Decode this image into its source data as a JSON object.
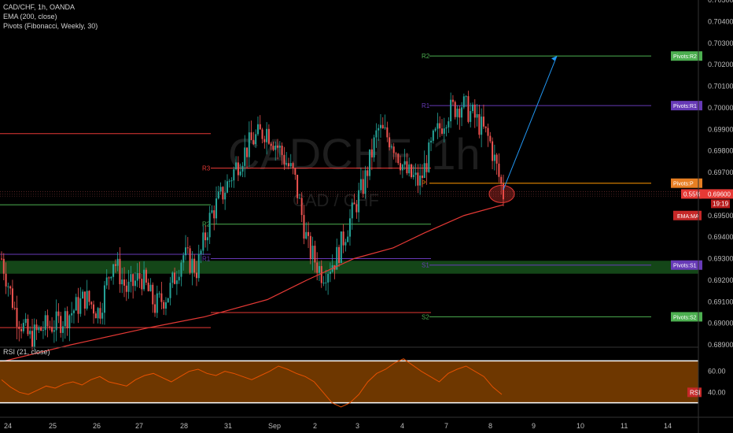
{
  "header": {
    "symbol_line": "CAD/CHF, 1h, OANDA",
    "indicator_1": "EMA (200, close)",
    "indicator_2": "Pivots (Fibonacci, Weekly, 30)",
    "rsi_label": "RSI (21, close)"
  },
  "watermark": {
    "big": "CADCHF, 1h",
    "small": "CAD / CHF"
  },
  "colors": {
    "background": "#000000",
    "up_candle": "#26a69a",
    "down_candle": "#ef5350",
    "ema": "#e53935",
    "pivot_green": "#4caf50",
    "pivot_purple": "#673ab7",
    "pivot_red": "#e53935",
    "pivot_orange": "#ff9800",
    "support_zone": "#1b5e20",
    "rsi_band": "#7a3d00",
    "arrow": "#2196f3"
  },
  "chart_data": [
    {
      "type": "candlestick",
      "title": "CAD/CHF, 1h, OANDA",
      "ylim": [
        0.689,
        0.705
      ],
      "y_ticks": [
        "0.70500",
        "0.70400",
        "0.70300",
        "0.70200",
        "0.70100",
        "0.70000",
        "0.69900",
        "0.69800",
        "0.69700",
        "0.69600",
        "0.69500",
        "0.69400",
        "0.69300",
        "0.69200",
        "0.69100",
        "0.69000",
        "0.68900"
      ],
      "x_ticks": [
        "24",
        "25",
        "26",
        "27",
        "28",
        "31",
        "Sep",
        "2",
        "3",
        "4",
        "7",
        "8",
        "9",
        "10",
        "11",
        "14"
      ],
      "price_path": [
        {
          "t": "24",
          "v": 0.693
        },
        {
          "t": "24.3",
          "v": 0.6905
        },
        {
          "t": "24.6",
          "v": 0.6893
        },
        {
          "t": "25",
          "v": 0.6898
        },
        {
          "t": "25.5",
          "v": 0.69
        },
        {
          "t": "26",
          "v": 0.6905
        },
        {
          "t": "26.5",
          "v": 0.6912
        },
        {
          "t": "27",
          "v": 0.6905
        },
        {
          "t": "27.5",
          "v": 0.693
        },
        {
          "t": "27.8",
          "v": 0.6915
        },
        {
          "t": "28",
          "v": 0.6922
        },
        {
          "t": "28.5",
          "v": 0.6908
        },
        {
          "t": "31",
          "v": 0.6914
        },
        {
          "t": "31.5",
          "v": 0.6932
        },
        {
          "t": "Sep",
          "v": 0.6925
        },
        {
          "t": "1.3",
          "v": 0.695
        },
        {
          "t": "1.7",
          "v": 0.6962
        },
        {
          "t": "2",
          "v": 0.6975
        },
        {
          "t": "2.3",
          "v": 0.6985
        },
        {
          "t": "2.6",
          "v": 0.699
        },
        {
          "t": "2.9",
          "v": 0.698
        },
        {
          "t": "3",
          "v": 0.6968
        },
        {
          "t": "3.2",
          "v": 0.6935
        },
        {
          "t": "3.5",
          "v": 0.6923
        },
        {
          "t": "3.8",
          "v": 0.693
        },
        {
          "t": "4",
          "v": 0.6948
        },
        {
          "t": "4.2",
          "v": 0.6965
        },
        {
          "t": "4.5",
          "v": 0.699
        },
        {
          "t": "4.8",
          "v": 0.6985
        },
        {
          "t": "5",
          "v": 0.697
        },
        {
          "t": "7",
          "v": 0.6965
        },
        {
          "t": "7.2",
          "v": 0.6985
        },
        {
          "t": "7.5",
          "v": 0.6998
        },
        {
          "t": "7.8",
          "v": 0.7002
        },
        {
          "t": "8",
          "v": 0.6995
        },
        {
          "t": "8.1",
          "v": 0.6985
        },
        {
          "t": "8.3",
          "v": 0.696
        }
      ],
      "ema_200": [
        {
          "t": "25",
          "v": 0.6882
        },
        {
          "t": "27",
          "v": 0.689
        },
        {
          "t": "29",
          "v": 0.6898
        },
        {
          "t": "31",
          "v": 0.6903
        },
        {
          "t": "1",
          "v": 0.6911
        },
        {
          "t": "2",
          "v": 0.692
        },
        {
          "t": "3",
          "v": 0.693
        },
        {
          "t": "4",
          "v": 0.6935
        },
        {
          "t": "5",
          "v": 0.6942
        },
        {
          "t": "7",
          "v": 0.695
        },
        {
          "t": "8",
          "v": 0.6955
        }
      ],
      "current_price": {
        "value": "0.69600",
        "change": "0.55%",
        "countdown": "19:19"
      },
      "ema_tag": "EMA:MA",
      "pivot_tags": [
        "Pivots:R2",
        "Pivots:R1",
        "Pivots:P",
        "Pivots:S1",
        "Pivots:S2"
      ],
      "weekly_pivot_labels": [
        "R3",
        "R2",
        "R1",
        "R2",
        "R1",
        "P",
        "S1",
        "S2"
      ],
      "pivots_current_week": {
        "R2": 0.7024,
        "R1": 0.7001,
        "P": 0.6965,
        "S1": 0.6927,
        "S2": 0.6903
      },
      "pivots_prior_week": {
        "R3": 0.6972,
        "R2": 0.6946,
        "R1": 0.693,
        "S2": 0.6905
      },
      "support_zone": [
        0.6923,
        0.6929
      ],
      "annotation": "projection arrow from circled EMA retest toward R2"
    },
    {
      "type": "line",
      "title": "RSI (21, close)",
      "ylim": [
        20,
        80
      ],
      "y_ticks": [
        "60.00",
        "40.00"
      ],
      "tag": "RSI",
      "values": [
        52,
        45,
        40,
        38,
        42,
        46,
        44,
        48,
        50,
        47,
        52,
        55,
        50,
        48,
        46,
        52,
        56,
        58,
        54,
        50,
        55,
        60,
        62,
        58,
        56,
        60,
        58,
        55,
        52,
        56,
        60,
        65,
        62,
        58,
        55,
        50,
        40,
        30,
        26,
        30,
        38,
        50,
        58,
        62,
        68,
        72,
        66,
        60,
        55,
        50,
        58,
        62,
        65,
        60,
        55,
        45,
        38
      ]
    }
  ]
}
